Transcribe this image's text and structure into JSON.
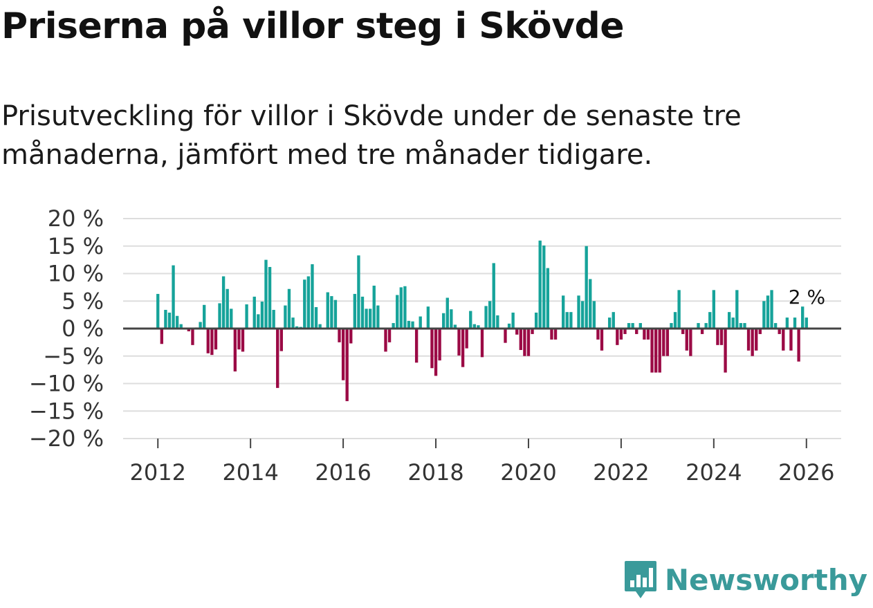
{
  "title": "Priserna på villor steg i Skövde",
  "subtitle": "Prisutveckling för villor i Skövde under de senaste tre månaderna, jämfört med tre månader tidigare.",
  "brand": "Newsworthy",
  "colors": {
    "positive": "#16a39a",
    "negative": "#9b0a45",
    "grid": "#dddddd",
    "zero": "#444444",
    "brand": "#3a9a9a"
  },
  "chart_data": {
    "type": "bar",
    "title": "Priserna på villor steg i Skövde",
    "xlabel": "",
    "ylabel": "",
    "ylim": [
      -20,
      20
    ],
    "xlim": [
      2011.25,
      2026.75
    ],
    "y_ticks": [
      20,
      15,
      10,
      5,
      0,
      -5,
      -10,
      -15,
      -20
    ],
    "y_tick_labels": [
      "20 %",
      "15 %",
      "10 %",
      "5 %",
      "0 %",
      "−5 %",
      "−10 %",
      "−15 %",
      "−20 %"
    ],
    "x_ticks": [
      2012,
      2014,
      2016,
      2018,
      2020,
      2022,
      2024,
      2026
    ],
    "x_tick_labels": [
      "2012",
      "2014",
      "2016",
      "2018",
      "2020",
      "2022",
      "2024",
      "2026"
    ],
    "start": 2012.0,
    "step_months": 1,
    "last_value_label": "2 %",
    "values": [
      6.3,
      -2.8,
      3.4,
      2.9,
      11.5,
      2.3,
      0.8,
      0,
      -0.5,
      -3.0,
      0.2,
      1.2,
      4.3,
      -4.5,
      -4.8,
      -3.8,
      4.6,
      9.5,
      7.2,
      3.6,
      -7.8,
      -3.8,
      -4.2,
      4.4,
      0,
      5.8,
      2.6,
      4.9,
      12.5,
      11.2,
      3.4,
      -10.8,
      -4.1,
      4.2,
      7.2,
      2.0,
      0.4,
      0.3,
      8.9,
      9.5,
      11.7,
      3.9,
      0.8,
      0,
      6.6,
      5.9,
      5.2,
      -2.5,
      -9.4,
      -13.2,
      -2.7,
      6.3,
      13.3,
      5.8,
      3.6,
      3.6,
      7.8,
      4.2,
      0,
      -4.2,
      -2.5,
      1.0,
      6.1,
      7.5,
      7.7,
      1.4,
      1.3,
      -6.2,
      2.2,
      0,
      4.0,
      -7.2,
      -8.6,
      -5.8,
      2.8,
      5.6,
      3.5,
      0.7,
      -4.9,
      -7.0,
      -3.6,
      3.2,
      0.8,
      0.6,
      -5.2,
      4.1,
      5.0,
      11.9,
      2.4,
      0,
      -2.6,
      0.9,
      2.9,
      -1.1,
      -3.9,
      -5.0,
      -5.0,
      -1.0,
      2.9,
      16.0,
      15.1,
      11.0,
      -2.0,
      -2.0,
      0,
      6.0,
      3.0,
      3.0,
      0,
      6.0,
      5.0,
      15.0,
      9.0,
      5.0,
      -2.0,
      -4.0,
      0,
      2.0,
      3.0,
      -3.0,
      -2.0,
      -1.0,
      1.0,
      1.0,
      -1.0,
      1.0,
      -2.0,
      -2.0,
      -8.0,
      -8.0,
      -8.0,
      -5.0,
      -5.0,
      1.0,
      3.0,
      7.0,
      -1.0,
      -4.0,
      -5.0,
      0,
      1.0,
      -1.0,
      1.0,
      3.0,
      7.0,
      -3.0,
      -3.0,
      -8.0,
      3.0,
      2.0,
      7.0,
      1.0,
      1.0,
      -4.0,
      -5.0,
      -4.0,
      -1.0,
      5.0,
      6.0,
      7.0,
      1.0,
      -1.0,
      -4.0,
      2.0,
      -4.0,
      2.0,
      -6.0,
      4.0,
      2.0
    ]
  }
}
